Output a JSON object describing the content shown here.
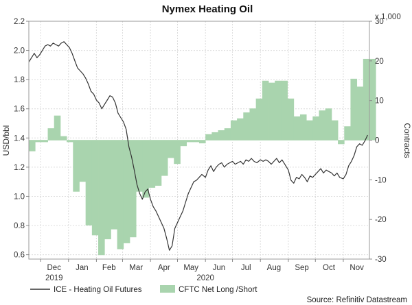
{
  "chart_data": {
    "type": "line",
    "title": "Nymex Heating Oil",
    "ylabel_left": "USD/bbl",
    "ylabel_right": "Contracts",
    "right_axis_multiplier": "x 1,000",
    "source": "Source: Refinitiv Datastream",
    "y_left_range": [
      0.57,
      2.2
    ],
    "y_right_range": [
      -30,
      30
    ],
    "y_left_ticks": [
      "0.6",
      "0.8",
      "1.0",
      "1.2",
      "1.4",
      "1.6",
      "1.8",
      "2.0",
      "2.2"
    ],
    "y_left_tick_values": [
      0.6,
      0.8,
      1.0,
      1.2,
      1.4,
      1.6,
      1.8,
      2.0,
      2.2
    ],
    "y_right_ticks": [
      "-30",
      "-20",
      "-10",
      "0",
      "10",
      "20",
      "30"
    ],
    "y_right_tick_values": [
      -30,
      -20,
      -10,
      0,
      10,
      20,
      30
    ],
    "x_range": [
      "2019-11-18",
      "2020-11-30"
    ],
    "month_labels": [
      {
        "label": "Dec",
        "date": "2019-12-16"
      },
      {
        "label": "Jan",
        "date": "2020-01-16"
      },
      {
        "label": "Feb",
        "date": "2020-02-15"
      },
      {
        "label": "Mar",
        "date": "2020-03-16"
      },
      {
        "label": "Apr",
        "date": "2020-04-16"
      },
      {
        "label": "May",
        "date": "2020-05-16"
      },
      {
        "label": "Jun",
        "date": "2020-06-16"
      },
      {
        "label": "Jul",
        "date": "2020-07-16"
      },
      {
        "label": "Aug",
        "date": "2020-08-16"
      },
      {
        "label": "Sep",
        "date": "2020-09-16"
      },
      {
        "label": "Oct",
        "date": "2020-10-16"
      },
      {
        "label": "Nov",
        "date": "2020-11-16"
      }
    ],
    "month_boundaries": [
      "2019-12-01",
      "2020-01-01",
      "2020-02-01",
      "2020-03-01",
      "2020-04-01",
      "2020-05-01",
      "2020-06-01",
      "2020-07-01",
      "2020-08-01",
      "2020-09-01",
      "2020-10-01",
      "2020-11-01"
    ],
    "year_labels": [
      {
        "label": "2019",
        "date": "2019-12-16"
      },
      {
        "label": "2020",
        "date": "2020-06-01"
      }
    ],
    "grid": true,
    "legend_position": "bottom-left",
    "series": [
      {
        "name": "ICE - Heating Oil Futures",
        "axis": "left",
        "color": "#333333",
        "points": [
          [
            "2019-11-18",
            1.92
          ],
          [
            "2019-11-21",
            1.95
          ],
          [
            "2019-11-24",
            1.98
          ],
          [
            "2019-11-27",
            1.95
          ],
          [
            "2019-11-30",
            1.97
          ],
          [
            "2019-12-03",
            2.0
          ],
          [
            "2019-12-06",
            2.03
          ],
          [
            "2019-12-09",
            2.04
          ],
          [
            "2019-12-12",
            2.03
          ],
          [
            "2019-12-15",
            2.05
          ],
          [
            "2019-12-18",
            2.04
          ],
          [
            "2019-12-21",
            2.03
          ],
          [
            "2019-12-24",
            2.05
          ],
          [
            "2019-12-27",
            2.06
          ],
          [
            "2019-12-30",
            2.04
          ],
          [
            "2020-01-02",
            2.02
          ],
          [
            "2020-01-05",
            1.98
          ],
          [
            "2020-01-08",
            1.93
          ],
          [
            "2020-01-11",
            1.88
          ],
          [
            "2020-01-14",
            1.86
          ],
          [
            "2020-01-17",
            1.84
          ],
          [
            "2020-01-20",
            1.81
          ],
          [
            "2020-01-23",
            1.77
          ],
          [
            "2020-01-26",
            1.72
          ],
          [
            "2020-01-29",
            1.7
          ],
          [
            "2020-02-01",
            1.66
          ],
          [
            "2020-02-04",
            1.64
          ],
          [
            "2020-02-07",
            1.6
          ],
          [
            "2020-02-10",
            1.63
          ],
          [
            "2020-02-13",
            1.66
          ],
          [
            "2020-02-16",
            1.69
          ],
          [
            "2020-02-19",
            1.68
          ],
          [
            "2020-02-22",
            1.64
          ],
          [
            "2020-02-25",
            1.57
          ],
          [
            "2020-02-28",
            1.54
          ],
          [
            "2020-03-02",
            1.51
          ],
          [
            "2020-03-05",
            1.46
          ],
          [
            "2020-03-08",
            1.34
          ],
          [
            "2020-03-11",
            1.27
          ],
          [
            "2020-03-14",
            1.18
          ],
          [
            "2020-03-17",
            1.08
          ],
          [
            "2020-03-20",
            1.02
          ],
          [
            "2020-03-23",
            0.98
          ],
          [
            "2020-03-26",
            1.03
          ],
          [
            "2020-03-29",
            1.05
          ],
          [
            "2020-04-01",
            0.98
          ],
          [
            "2020-04-04",
            0.93
          ],
          [
            "2020-04-07",
            0.9
          ],
          [
            "2020-04-10",
            0.86
          ],
          [
            "2020-04-13",
            0.82
          ],
          [
            "2020-04-16",
            0.78
          ],
          [
            "2020-04-19",
            0.71
          ],
          [
            "2020-04-22",
            0.63
          ],
          [
            "2020-04-25",
            0.66
          ],
          [
            "2020-04-28",
            0.78
          ],
          [
            "2020-05-01",
            0.82
          ],
          [
            "2020-05-04",
            0.86
          ],
          [
            "2020-05-07",
            0.9
          ],
          [
            "2020-05-10",
            0.96
          ],
          [
            "2020-05-13",
            1.02
          ],
          [
            "2020-05-16",
            1.06
          ],
          [
            "2020-05-19",
            1.1
          ],
          [
            "2020-05-22",
            1.11
          ],
          [
            "2020-05-25",
            1.13
          ],
          [
            "2020-05-28",
            1.15
          ],
          [
            "2020-06-01",
            1.13
          ],
          [
            "2020-06-04",
            1.18
          ],
          [
            "2020-06-07",
            1.21
          ],
          [
            "2020-06-10",
            1.17
          ],
          [
            "2020-06-13",
            1.2
          ],
          [
            "2020-06-16",
            1.22
          ],
          [
            "2020-06-19",
            1.23
          ],
          [
            "2020-06-22",
            1.2
          ],
          [
            "2020-06-25",
            1.22
          ],
          [
            "2020-06-28",
            1.23
          ],
          [
            "2020-07-01",
            1.24
          ],
          [
            "2020-07-04",
            1.22
          ],
          [
            "2020-07-07",
            1.23
          ],
          [
            "2020-07-10",
            1.24
          ],
          [
            "2020-07-13",
            1.22
          ],
          [
            "2020-07-16",
            1.25
          ],
          [
            "2020-07-19",
            1.24
          ],
          [
            "2020-07-22",
            1.26
          ],
          [
            "2020-07-25",
            1.24
          ],
          [
            "2020-07-28",
            1.23
          ],
          [
            "2020-08-01",
            1.25
          ],
          [
            "2020-08-04",
            1.24
          ],
          [
            "2020-08-07",
            1.25
          ],
          [
            "2020-08-10",
            1.24
          ],
          [
            "2020-08-13",
            1.22
          ],
          [
            "2020-08-16",
            1.24
          ],
          [
            "2020-08-19",
            1.26
          ],
          [
            "2020-08-22",
            1.23
          ],
          [
            "2020-08-25",
            1.25
          ],
          [
            "2020-08-28",
            1.22
          ],
          [
            "2020-09-01",
            1.18
          ],
          [
            "2020-09-04",
            1.11
          ],
          [
            "2020-09-07",
            1.09
          ],
          [
            "2020-09-10",
            1.13
          ],
          [
            "2020-09-13",
            1.12
          ],
          [
            "2020-09-16",
            1.15
          ],
          [
            "2020-09-19",
            1.13
          ],
          [
            "2020-09-22",
            1.1
          ],
          [
            "2020-09-25",
            1.14
          ],
          [
            "2020-09-28",
            1.13
          ],
          [
            "2020-10-01",
            1.15
          ],
          [
            "2020-10-04",
            1.17
          ],
          [
            "2020-10-07",
            1.19
          ],
          [
            "2020-10-10",
            1.16
          ],
          [
            "2020-10-13",
            1.18
          ],
          [
            "2020-10-16",
            1.17
          ],
          [
            "2020-10-19",
            1.16
          ],
          [
            "2020-10-22",
            1.14
          ],
          [
            "2020-10-25",
            1.16
          ],
          [
            "2020-10-28",
            1.13
          ],
          [
            "2020-11-01",
            1.12
          ],
          [
            "2020-11-04",
            1.15
          ],
          [
            "2020-11-07",
            1.21
          ],
          [
            "2020-11-10",
            1.24
          ],
          [
            "2020-11-13",
            1.28
          ],
          [
            "2020-11-16",
            1.34
          ],
          [
            "2020-11-19",
            1.36
          ],
          [
            "2020-11-22",
            1.35
          ],
          [
            "2020-11-25",
            1.38
          ],
          [
            "2020-11-28",
            1.42
          ]
        ]
      },
      {
        "name": "CFTC Net Long /Short",
        "axis": "right",
        "color": "#a9d4ae",
        "points": [
          [
            "2019-11-18",
            -2.8
          ],
          [
            "2019-11-25",
            -0.5
          ],
          [
            "2019-12-02",
            -0.5
          ],
          [
            "2019-12-09",
            3.0
          ],
          [
            "2019-12-16",
            6.2
          ],
          [
            "2019-12-23",
            1.0
          ],
          [
            "2019-12-30",
            -0.5
          ],
          [
            "2020-01-06",
            -13.0
          ],
          [
            "2020-01-13",
            -10.5
          ],
          [
            "2020-01-20",
            -21.5
          ],
          [
            "2020-01-27",
            -24.0
          ],
          [
            "2020-02-03",
            -29.0
          ],
          [
            "2020-02-10",
            -25.0
          ],
          [
            "2020-02-17",
            -22.5
          ],
          [
            "2020-02-24",
            -27.5
          ],
          [
            "2020-03-02",
            -26.0
          ],
          [
            "2020-03-09",
            -24.5
          ],
          [
            "2020-03-16",
            -13.0
          ],
          [
            "2020-03-23",
            -14.5
          ],
          [
            "2020-03-30",
            -12.0
          ],
          [
            "2020-04-06",
            -11.5
          ],
          [
            "2020-04-13",
            -9.0
          ],
          [
            "2020-04-20",
            -4.5
          ],
          [
            "2020-04-27",
            -6.0
          ],
          [
            "2020-05-04",
            -1.5
          ],
          [
            "2020-05-11",
            -0.5
          ],
          [
            "2020-05-18",
            -0.5
          ],
          [
            "2020-05-25",
            -0.8
          ],
          [
            "2020-06-01",
            1.5
          ],
          [
            "2020-06-08",
            2.0
          ],
          [
            "2020-06-15",
            2.5
          ],
          [
            "2020-06-22",
            3.0
          ],
          [
            "2020-06-29",
            5.0
          ],
          [
            "2020-07-06",
            5.5
          ],
          [
            "2020-07-13",
            7.0
          ],
          [
            "2020-07-20",
            8.0
          ],
          [
            "2020-07-27",
            10.5
          ],
          [
            "2020-08-03",
            15.0
          ],
          [
            "2020-08-10",
            14.5
          ],
          [
            "2020-08-17",
            15.0
          ],
          [
            "2020-08-24",
            15.0
          ],
          [
            "2020-08-31",
            10.5
          ],
          [
            "2020-09-07",
            6.0
          ],
          [
            "2020-09-14",
            6.5
          ],
          [
            "2020-09-21",
            5.0
          ],
          [
            "2020-09-28",
            6.0
          ],
          [
            "2020-10-05",
            7.5
          ],
          [
            "2020-10-12",
            8.0
          ],
          [
            "2020-10-19",
            5.0
          ],
          [
            "2020-10-26",
            -1.0
          ],
          [
            "2020-11-02",
            3.5
          ],
          [
            "2020-11-09",
            15.5
          ],
          [
            "2020-11-16",
            13.5
          ],
          [
            "2020-11-23",
            20.5
          ],
          [
            "2020-11-30",
            20.5
          ]
        ]
      }
    ]
  }
}
